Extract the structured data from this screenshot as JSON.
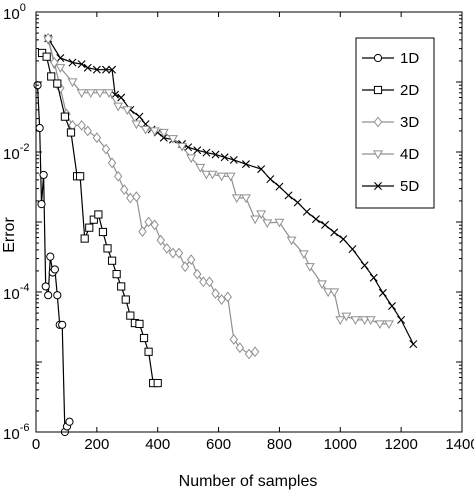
{
  "chart_data": {
    "type": "line",
    "xlabel": "Number of samples",
    "ylabel": "Error",
    "xlim": [
      0,
      1400
    ],
    "ylim": [
      1e-06,
      1
    ],
    "yscale": "log",
    "grid": false,
    "legend_position": "top-right",
    "x_ticks": [
      {
        "value": 0,
        "label": "0"
      },
      {
        "value": 200,
        "label": "200"
      },
      {
        "value": 400,
        "label": "400"
      },
      {
        "value": 600,
        "label": "600"
      },
      {
        "value": 800,
        "label": "800"
      },
      {
        "value": 1000,
        "label": "1000"
      },
      {
        "value": 1200,
        "label": "1200"
      },
      {
        "value": 1400,
        "label": "1400"
      }
    ],
    "y_ticks": [
      {
        "value": 1e-06,
        "base": "10",
        "exp": "-6"
      },
      {
        "value": 0.0001,
        "base": "10",
        "exp": "-4"
      },
      {
        "value": 0.01,
        "base": "10",
        "exp": "-2"
      },
      {
        "value": 1,
        "base": "10",
        "exp": "0"
      }
    ],
    "series": [
      {
        "name": "1D",
        "marker": "circle",
        "color": "#000000",
        "points": [
          [
            5,
            0.09
          ],
          [
            12,
            0.022
          ],
          [
            18,
            0.0018
          ],
          [
            25,
            0.0047
          ],
          [
            32,
            0.00012
          ],
          [
            40,
            9e-05
          ],
          [
            47,
            0.00032
          ],
          [
            55,
            0.00019
          ],
          [
            62,
            0.00021
          ],
          [
            70,
            9e-05
          ],
          [
            78,
            3.4e-05
          ],
          [
            86,
            3.4e-05
          ],
          [
            95,
            1e-06
          ],
          [
            102,
            1.2e-06
          ],
          [
            110,
            1.4e-06
          ]
        ]
      },
      {
        "name": "2D",
        "marker": "square",
        "color": "#000000",
        "points": [
          [
            20,
            0.26
          ],
          [
            35,
            0.23
          ],
          [
            50,
            0.12
          ],
          [
            70,
            0.095
          ],
          [
            95,
            0.032
          ],
          [
            115,
            0.019
          ],
          [
            135,
            0.0045
          ],
          [
            145,
            0.0045
          ],
          [
            160,
            0.00058
          ],
          [
            175,
            0.00083
          ],
          [
            190,
            0.00108
          ],
          [
            205,
            0.00128
          ],
          [
            220,
            0.00072
          ],
          [
            235,
            0.00042
          ],
          [
            250,
            0.00028
          ],
          [
            265,
            0.00018
          ],
          [
            280,
            0.00012
          ],
          [
            295,
            7.8e-05
          ],
          [
            310,
            4.6e-05
          ],
          [
            325,
            3.6e-05
          ],
          [
            340,
            3.5e-05
          ],
          [
            355,
            2.2e-05
          ],
          [
            370,
            1.4e-05
          ],
          [
            385,
            5e-06
          ],
          [
            400,
            5e-06
          ]
        ]
      },
      {
        "name": "3D",
        "marker": "diamond",
        "color": "#909090",
        "points": [
          [
            40,
            0.42
          ],
          [
            60,
            0.19
          ],
          [
            80,
            0.082
          ],
          [
            100,
            0.035
          ],
          [
            120,
            0.024
          ],
          [
            150,
            0.024
          ],
          [
            170,
            0.02
          ],
          [
            200,
            0.016
          ],
          [
            230,
            0.011
          ],
          [
            250,
            0.007
          ],
          [
            270,
            0.0045
          ],
          [
            290,
            0.0029
          ],
          [
            310,
            0.0022
          ],
          [
            330,
            0.0023
          ],
          [
            350,
            0.00073
          ],
          [
            370,
            0.001
          ],
          [
            390,
            0.00091
          ],
          [
            410,
            0.00055
          ],
          [
            430,
            0.00042
          ],
          [
            450,
            0.00036
          ],
          [
            470,
            0.00036
          ],
          [
            490,
            0.00023
          ],
          [
            510,
            0.00029
          ],
          [
            530,
            0.00018
          ],
          [
            550,
            0.00014
          ],
          [
            570,
            0.00014
          ],
          [
            590,
            9.5e-05
          ],
          [
            610,
            7.8e-05
          ],
          [
            630,
            8.5e-05
          ],
          [
            650,
            2.1e-05
          ],
          [
            670,
            1.6e-05
          ],
          [
            700,
            1.3e-05
          ],
          [
            720,
            1.4e-05
          ]
        ]
      },
      {
        "name": "4D",
        "marker": "triangle-down",
        "color": "#909090",
        "points": [
          [
            40,
            0.4
          ],
          [
            60,
            0.18
          ],
          [
            80,
            0.16
          ],
          [
            120,
            0.1
          ],
          [
            150,
            0.07
          ],
          [
            180,
            0.07
          ],
          [
            210,
            0.07
          ],
          [
            240,
            0.07
          ],
          [
            270,
            0.045
          ],
          [
            300,
            0.04
          ],
          [
            330,
            0.025
          ],
          [
            360,
            0.021
          ],
          [
            390,
            0.02
          ],
          [
            420,
            0.019
          ],
          [
            450,
            0.0155
          ],
          [
            480,
            0.012
          ],
          [
            510,
            0.0082
          ],
          [
            540,
            0.006
          ],
          [
            560,
            0.0048
          ],
          [
            580,
            0.0048
          ],
          [
            610,
            0.0045
          ],
          [
            640,
            0.0045
          ],
          [
            660,
            0.0022
          ],
          [
            690,
            0.0022
          ],
          [
            720,
            0.0011
          ],
          [
            740,
            0.0013
          ],
          [
            760,
            0.00097
          ],
          [
            800,
            0.00099
          ],
          [
            840,
            0.00055
          ],
          [
            880,
            0.00035
          ],
          [
            900,
            0.00023
          ],
          [
            940,
            0.00013
          ],
          [
            960,
            0.0001
          ],
          [
            980,
            0.0001
          ],
          [
            1000,
            4e-05
          ],
          [
            1020,
            4.5e-05
          ],
          [
            1050,
            4e-05
          ],
          [
            1080,
            4e-05
          ],
          [
            1100,
            4e-05
          ],
          [
            1130,
            3.5e-05
          ],
          [
            1160,
            3.5e-05
          ]
        ]
      },
      {
        "name": "5D",
        "marker": "x",
        "color": "#000000",
        "points": [
          [
            40,
            0.42
          ],
          [
            80,
            0.22
          ],
          [
            120,
            0.19
          ],
          [
            150,
            0.18
          ],
          [
            170,
            0.16
          ],
          [
            200,
            0.15
          ],
          [
            230,
            0.15
          ],
          [
            250,
            0.15
          ],
          [
            260,
            0.066
          ],
          [
            280,
            0.06
          ],
          [
            310,
            0.04
          ],
          [
            340,
            0.032
          ],
          [
            360,
            0.025
          ],
          [
            380,
            0.021
          ],
          [
            400,
            0.019
          ],
          [
            420,
            0.016
          ],
          [
            450,
            0.015
          ],
          [
            480,
            0.013
          ],
          [
            500,
            0.0117
          ],
          [
            530,
            0.0106
          ],
          [
            560,
            0.0098
          ],
          [
            590,
            0.0092
          ],
          [
            620,
            0.0084
          ],
          [
            650,
            0.0077
          ],
          [
            690,
            0.0067
          ],
          [
            740,
            0.0057
          ],
          [
            770,
            0.0041
          ],
          [
            800,
            0.0032
          ],
          [
            830,
            0.0024
          ],
          [
            860,
            0.0019
          ],
          [
            890,
            0.0014
          ],
          [
            920,
            0.0011
          ],
          [
            950,
            0.00091
          ],
          [
            980,
            0.00071
          ],
          [
            1010,
            0.00057
          ],
          [
            1040,
            0.00041
          ],
          [
            1080,
            0.00024
          ],
          [
            1110,
            0.00016
          ],
          [
            1140,
            9.7e-05
          ],
          [
            1170,
            6.3e-05
          ],
          [
            1200,
            4e-05
          ],
          [
            1240,
            1.8e-05
          ]
        ]
      }
    ]
  }
}
